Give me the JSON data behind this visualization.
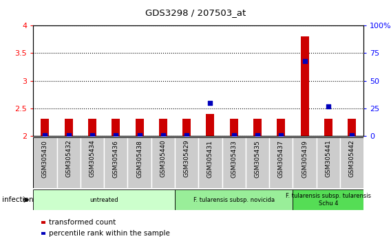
{
  "title": "GDS3298 / 207503_at",
  "samples": [
    "GSM305430",
    "GSM305432",
    "GSM305434",
    "GSM305436",
    "GSM305438",
    "GSM305440",
    "GSM305429",
    "GSM305431",
    "GSM305433",
    "GSM305435",
    "GSM305437",
    "GSM305439",
    "GSM305441",
    "GSM305442"
  ],
  "transformed_count": [
    2.31,
    2.31,
    2.31,
    2.31,
    2.31,
    2.31,
    2.31,
    2.4,
    2.31,
    2.31,
    2.31,
    3.8,
    2.31,
    2.31
  ],
  "percentile_rank": [
    1.0,
    1.0,
    1.0,
    1.0,
    1.0,
    1.0,
    1.0,
    30.0,
    1.0,
    1.0,
    1.0,
    68.0,
    27.0,
    1.0
  ],
  "ylim_left": [
    2.0,
    4.0
  ],
  "ylim_right": [
    0,
    100
  ],
  "yticks_left": [
    2.0,
    2.5,
    3.0,
    3.5,
    4.0
  ],
  "yticks_right": [
    0,
    25,
    50,
    75,
    100
  ],
  "bar_color": "#cc0000",
  "dot_color": "#0000bb",
  "bar_width": 0.35,
  "group_configs": [
    {
      "label": "untreated",
      "start": 0,
      "end": 5,
      "bg": "#ccffcc"
    },
    {
      "label": "F. tularensis subsp. novicida",
      "start": 6,
      "end": 10,
      "bg": "#99ee99"
    },
    {
      "label": "F. tularensis subsp. tularensis\nSchu 4",
      "start": 11,
      "end": 13,
      "bg": "#55dd55"
    }
  ],
  "infection_label": "infection",
  "legend_items": [
    {
      "color": "#cc0000",
      "label": "transformed count"
    },
    {
      "color": "#0000bb",
      "label": "percentile rank within the sample"
    }
  ]
}
